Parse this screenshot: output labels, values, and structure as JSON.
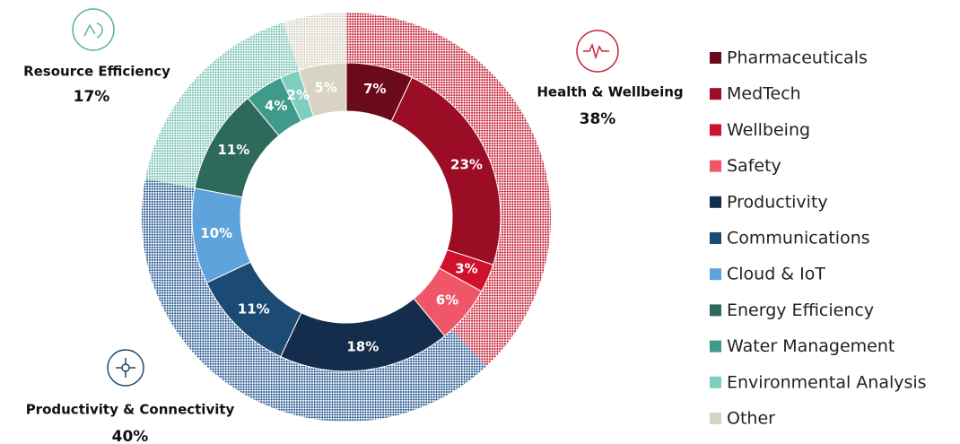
{
  "chart_data": {
    "type": "donut",
    "inner": {
      "categories": [
        "Pharmaceuticals",
        "MedTech",
        "Wellbeing",
        "Safety",
        "Productivity",
        "Communications",
        "Cloud & IoT",
        "Energy Efficiency",
        "Water Management",
        "Environmental Analysis",
        "Other"
      ],
      "values": [
        7,
        23,
        3,
        6,
        18,
        11,
        10,
        11,
        4,
        2,
        5
      ],
      "value_labels": [
        "7%",
        "23%",
        "3%",
        "6%",
        "18%",
        "11%",
        "10%",
        "11%",
        "4%",
        "2%",
        "5%"
      ],
      "colors": [
        "#6b0a1a",
        "#9b0d24",
        "#d0112b",
        "#f0566a",
        "#142d4c",
        "#1b4a72",
        "#5fa3dc",
        "#2e6a5b",
        "#3e9a8a",
        "#7fcfc0",
        "#d9d3c3"
      ]
    },
    "outer": {
      "categories": [
        "Health & Wellbeing",
        "Productivity & Connectivity",
        "Resource Efficiency",
        null
      ],
      "values": [
        38,
        40,
        17,
        5
      ],
      "value_labels": [
        "38%",
        "40%",
        "17%",
        null
      ],
      "colors": [
        "#c8283c",
        "#2f5f95",
        "#7cc4b8",
        "#d8d4c4"
      ]
    }
  }
}
